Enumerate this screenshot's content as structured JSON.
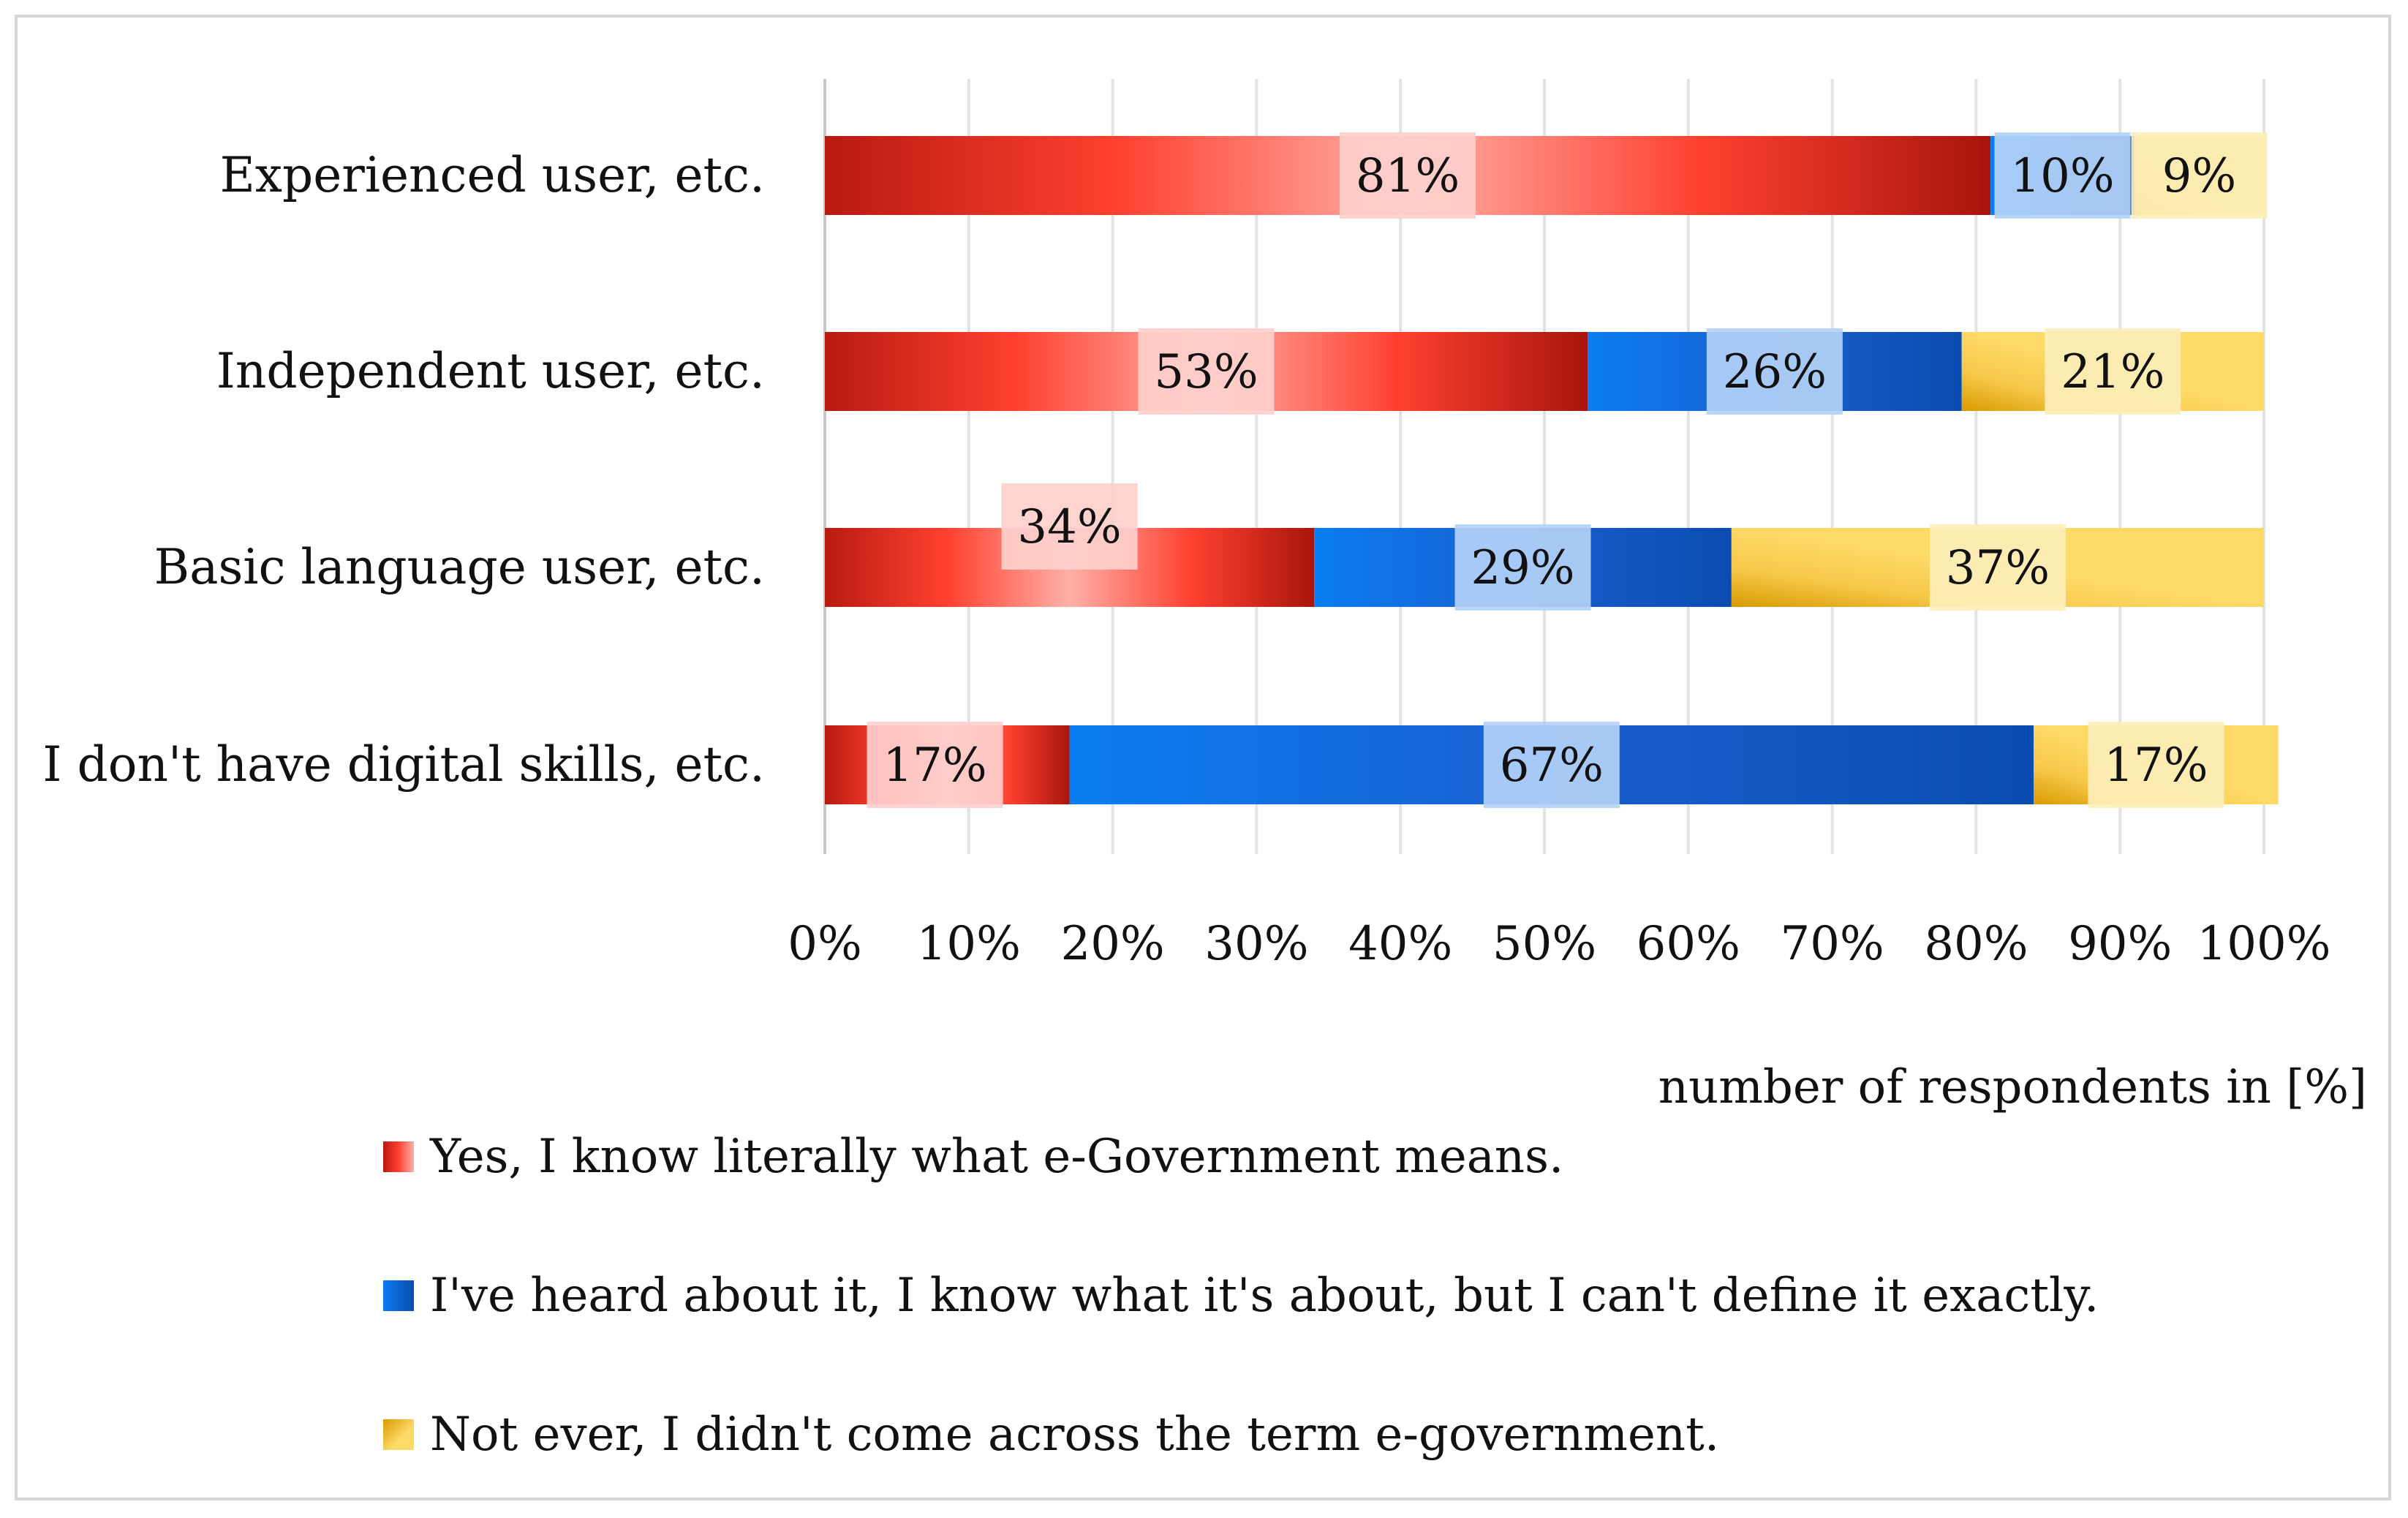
{
  "chart_data": {
    "type": "bar",
    "orientation": "horizontal",
    "stacked": true,
    "categories": [
      "Experienced user, etc.",
      "Independent user, etc.",
      "Basic language user, etc.",
      "I don't have digital skills, etc."
    ],
    "series": [
      {
        "name": "Yes, I know literally what e-Government means.",
        "color": "#e83a30",
        "values": [
          81,
          53,
          34,
          17
        ],
        "labels": [
          "81%",
          "53%",
          "34%",
          "17%"
        ]
      },
      {
        "name": "I've heard about it, I know what it's about, but I can't define it exactly.",
        "color": "#1666d6",
        "values": [
          10,
          26,
          29,
          67
        ],
        "labels": [
          "10%",
          "26%",
          "29%",
          "67%"
        ]
      },
      {
        "name": "Not ever, I didn't come across the term e-government.",
        "color": "#fcd158",
        "values": [
          9,
          21,
          37,
          17
        ],
        "labels": [
          "9%",
          "21%",
          "37%",
          "17%"
        ]
      }
    ],
    "xlim": [
      0,
      100
    ],
    "xticks": [
      "0%",
      "10%",
      "20%",
      "30%",
      "40%",
      "50%",
      "60%",
      "70%",
      "80%",
      "90%",
      "100%"
    ],
    "xlabel": "number of respondents in [%]",
    "ylabel": "",
    "grid": true,
    "legend_position": "bottom-left"
  }
}
